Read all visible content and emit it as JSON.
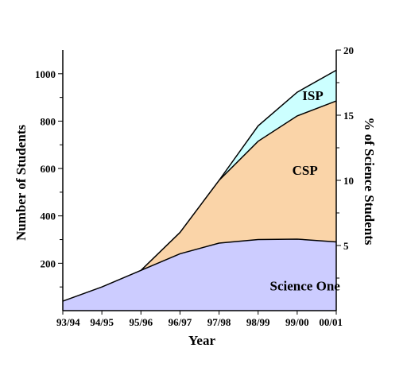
{
  "chart_data": {
    "type": "area",
    "stacked": true,
    "categories": [
      "93/94",
      "94/95",
      "95/96",
      "96/97",
      "97/98",
      "98/99",
      "99/00",
      "00/01"
    ],
    "series": [
      {
        "name": "Science One",
        "values": [
          40,
          100,
          170,
          240,
          285,
          300,
          302,
          290
        ],
        "color": "#ccccff"
      },
      {
        "name": "CSP",
        "values": [
          0,
          0,
          0,
          90,
          265,
          415,
          520,
          595
        ],
        "color": "#fad4a8"
      },
      {
        "name": "ISP",
        "values": [
          0,
          0,
          0,
          0,
          0,
          65,
          100,
          130
        ],
        "color": "#ccffff"
      }
    ],
    "xlabel": "Year",
    "ylabel": "Number of Students",
    "ylim": [
      0,
      1100
    ],
    "yticks": [
      200,
      400,
      600,
      800,
      1000
    ],
    "y2label": "% of Science Students",
    "y2lim": [
      0,
      20
    ],
    "y2ticks": [
      5,
      10,
      15,
      20
    ],
    "grid": false,
    "legend": "none"
  }
}
